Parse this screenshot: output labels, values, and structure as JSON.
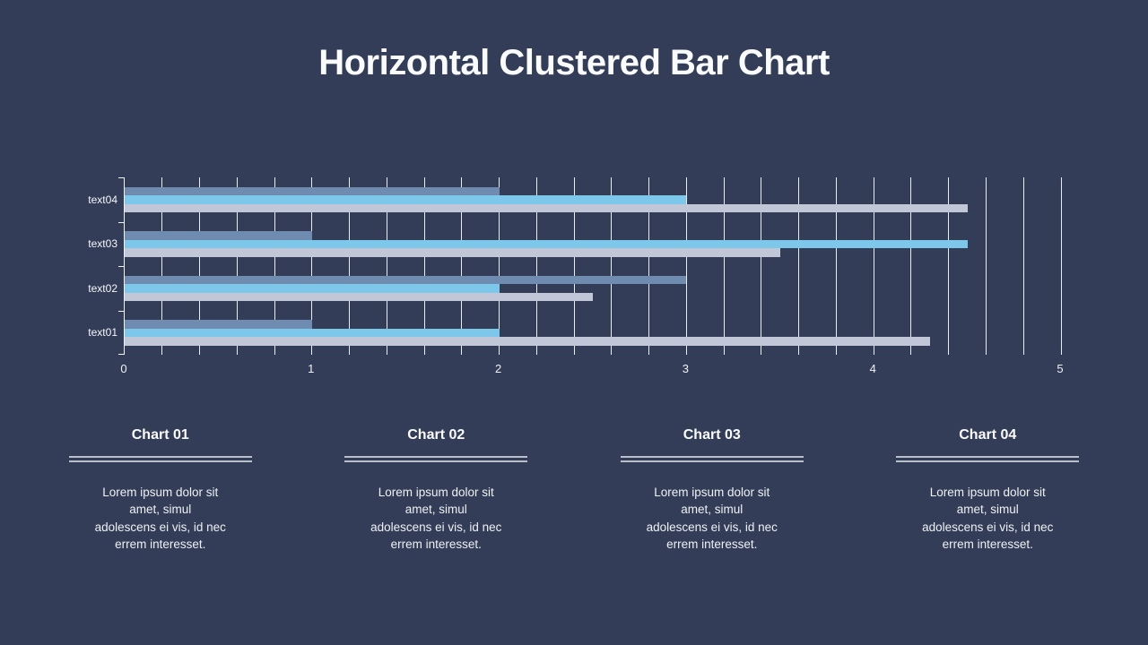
{
  "slide": {
    "title": "Horizontal Clustered Bar Chart",
    "background_color": "#343d57"
  },
  "chart_data": {
    "type": "bar",
    "orientation": "horizontal",
    "title": "",
    "xlabel": "",
    "ylabel": "",
    "categories": [
      "text01",
      "text02",
      "text03",
      "text04"
    ],
    "category_display_order": "bottom-to-top",
    "series_order": "top-to-bottom within each category cluster",
    "series": [
      {
        "color": "#6f8bb0",
        "values": [
          1,
          3,
          1,
          2
        ]
      },
      {
        "color": "#7cc7ea",
        "values": [
          2,
          2,
          4.5,
          3
        ]
      },
      {
        "color": "#c1c7d6",
        "values": [
          4.3,
          2.5,
          3.5,
          4.5
        ]
      }
    ],
    "xlim": [
      0,
      5
    ],
    "x_ticks": [
      "0",
      "1",
      "2",
      "3",
      "4",
      "5"
    ],
    "minor_grid_step": 0.2,
    "grid": true,
    "legend": "none",
    "gridline_color": "#e9edf3",
    "axis_color": "#eef1f6",
    "label_color": "#f5f7fa"
  },
  "columns": [
    {
      "title": "Chart 01",
      "lines": [
        "Lorem ipsum dolor sit",
        "amet, simul",
        "adolescens ei vis, id nec",
        "errem interesset."
      ]
    },
    {
      "title": "Chart 02",
      "lines": [
        "Lorem ipsum dolor sit",
        "amet, simul",
        "adolescens ei vis, id nec",
        "errem interesset."
      ]
    },
    {
      "title": "Chart 03",
      "lines": [
        "Lorem ipsum dolor sit",
        "amet, simul",
        "adolescens ei vis, id nec",
        "errem interesset."
      ]
    },
    {
      "title": "Chart 04",
      "lines": [
        "Lorem ipsum dolor sit",
        "amet, simul",
        "adolescens ei vis, id nec",
        "errem interesset."
      ]
    }
  ]
}
